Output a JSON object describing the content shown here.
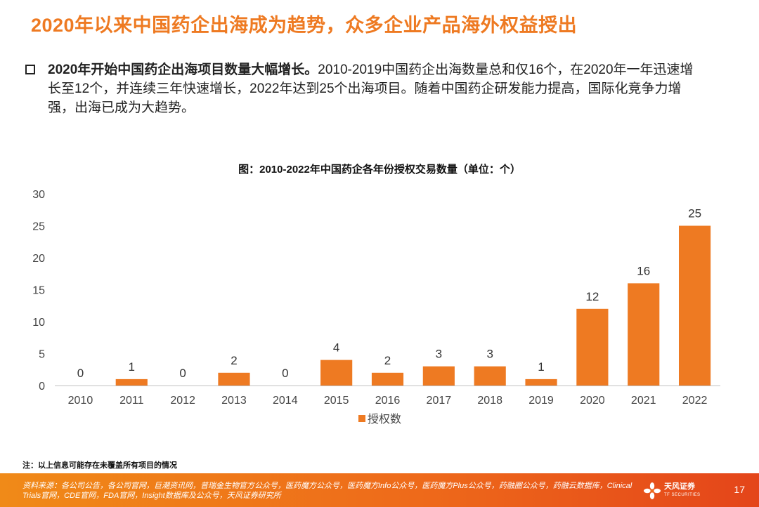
{
  "header": {
    "title": "2020年以来中国药企出海成为趋势，众多企业产品海外权益授出"
  },
  "bullet": {
    "bold": "2020年开始中国药企出海项目数量大幅增长。",
    "text": "2010-2019中国药企出海数量总和仅16个，在2020年一年迅速增长至12个，并连续三年快速增长，2022年达到25个出海项目。随着中国药企研发能力提高，国际化竞争力增强，出海已成为大趋势。"
  },
  "chart_data": {
    "type": "bar",
    "title": "图：2010-2022年中国药企各年份授权交易数量（单位：个）",
    "categories": [
      "2010",
      "2011",
      "2012",
      "2013",
      "2014",
      "2015",
      "2016",
      "2017",
      "2018",
      "2019",
      "2020",
      "2021",
      "2022"
    ],
    "series": [
      {
        "name": "授权数",
        "values": [
          0,
          1,
          0,
          2,
          0,
          4,
          2,
          3,
          3,
          1,
          12,
          16,
          25
        ]
      }
    ],
    "ylim": [
      0,
      30
    ],
    "yticks": [
      0,
      5,
      10,
      15,
      20,
      25,
      30
    ],
    "bar_color": "#ee7a22",
    "legend_position": "bottom-center",
    "data_labels": true
  },
  "note": "注：以上信息可能存在未覆盖所有项目的情况",
  "footer": {
    "source": "资料来源：各公司公告，各公司官网，巨潮资讯网，普瑞金生物官方公众号，医药魔方公众号，医药魔方Info公众号，医药魔方Plus公众号，药融圈公众号，药融云数据库，Clinical Trials官网，CDE官网，FDA官网，Insight数据库及公众号，天风证券研究所",
    "logo_text": "天风证券",
    "logo_sub": "TF SECURITIES",
    "page_number": "17"
  }
}
